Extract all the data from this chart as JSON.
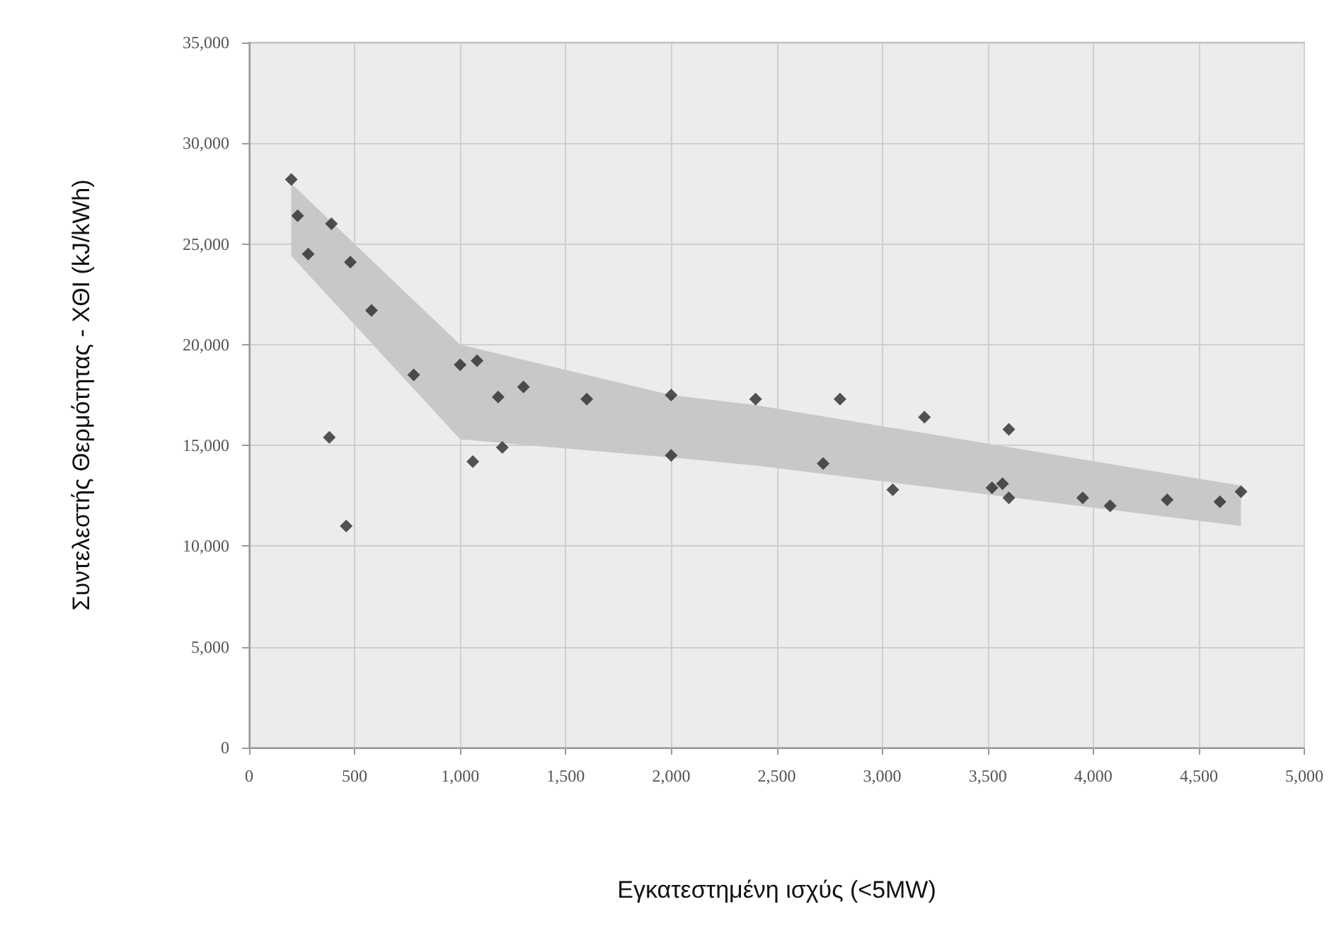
{
  "chart_data": {
    "type": "scatter",
    "xlabel": "Εγκατεστημένη ισχύς (<5MW)",
    "ylabel": "Συντελεστής Θερμότητας - ΧΘΙ (kJ/kWh)",
    "marker": "diamond",
    "grid": true,
    "xlim": [
      0,
      5000
    ],
    "ylim": [
      0,
      35000
    ],
    "xticks": [
      0,
      500,
      {
        "value": 1000,
        "label": "1,000"
      },
      {
        "value": 1500,
        "label": "1,500"
      },
      {
        "value": 2000,
        "label": "2,000"
      },
      {
        "value": 2500,
        "label": "2,500"
      },
      {
        "value": 3000,
        "label": "3,000"
      },
      {
        "value": 3500,
        "label": "3,500"
      },
      {
        "value": 4000,
        "label": "4,000"
      },
      {
        "value": 4500,
        "label": "4,500"
      },
      {
        "value": 5000,
        "label": "5,000"
      }
    ],
    "yticks": [
      0,
      {
        "value": 5000,
        "label": "5,000"
      },
      {
        "value": 10000,
        "label": "10,000"
      },
      {
        "value": 15000,
        "label": "15,000"
      },
      {
        "value": 20000,
        "label": "20,000"
      },
      {
        "value": 25000,
        "label": "25,000"
      },
      {
        "value": 30000,
        "label": "30,000"
      },
      {
        "value": 35000,
        "label": "35,000"
      }
    ],
    "series": [
      {
        "type": "area",
        "color": "#c8c8c8",
        "x": [
          200,
          1000,
          2000,
          2400,
          4700
        ],
        "values": [
          null,
          null,
          null,
          null,
          null
        ],
        "lower": [
          24400,
          15300,
          14400,
          14000,
          11000
        ],
        "upper": [
          28000,
          20000,
          17500,
          17000,
          13000
        ]
      },
      {
        "color": "#2a2a2a",
        "x": [
          200,
          230,
          280,
          390,
          480,
          580,
          780,
          1000,
          1080,
          1180,
          1300,
          1600,
          2000,
          2400,
          2800,
          380,
          460,
          1060,
          1200,
          2000,
          3200,
          2720,
          3050,
          3520,
          3570,
          3600,
          3600,
          3950,
          4080,
          4350,
          4600,
          4700
        ],
        "values": [
          28200,
          26400,
          24500,
          26000,
          24100,
          21700,
          18500,
          19000,
          19200,
          17400,
          17900,
          17300,
          17500,
          17300,
          17300,
          15400,
          11000,
          14200,
          14900,
          14500,
          16400,
          14100,
          12800,
          12900,
          13100,
          12400,
          15800,
          12400,
          12000,
          12300,
          12200,
          12700
        ]
      }
    ]
  }
}
